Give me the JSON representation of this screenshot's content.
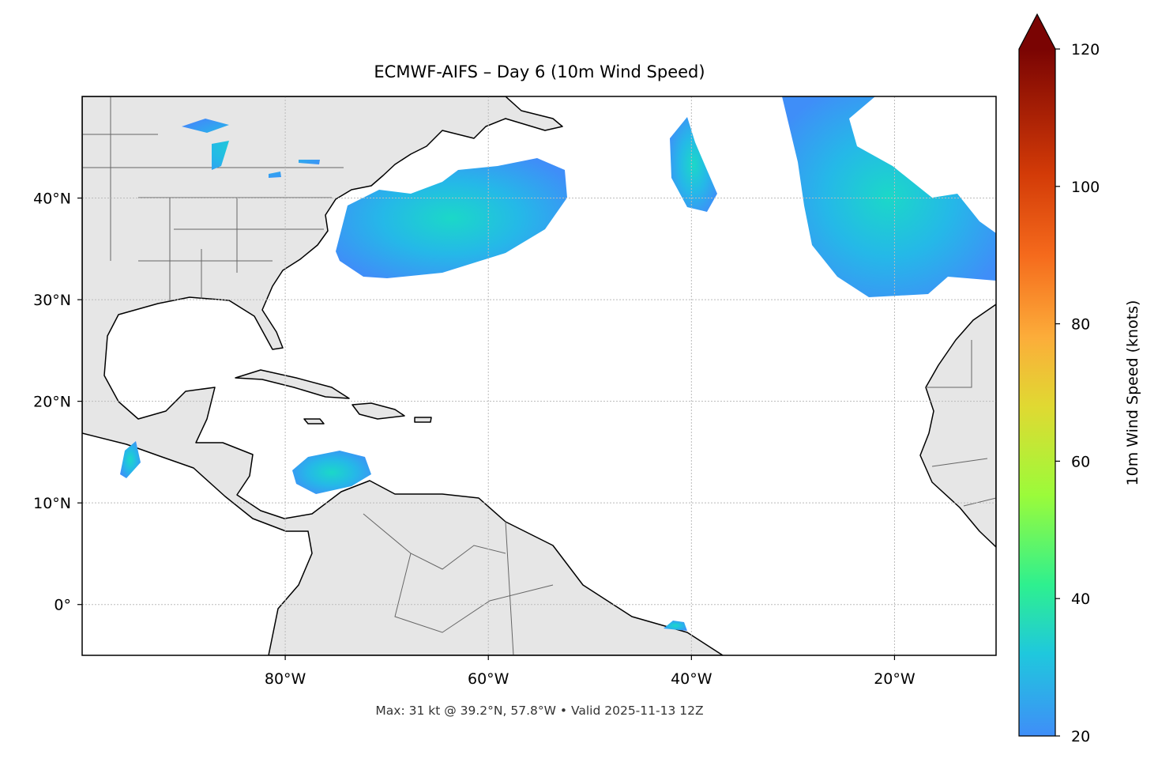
{
  "title": "ECMWF-AIFS – Day 6 (10m Wind Speed)",
  "footnote": "Max: 31 kt @ 39.2°N, 57.8°W • Valid 2025-11-13 12Z",
  "map": {
    "xlim": [
      -100,
      -10
    ],
    "ylim": [
      -5,
      50
    ],
    "grid": true,
    "xticks": [
      {
        "value": -80,
        "label": "80°W"
      },
      {
        "value": -60,
        "label": "60°W"
      },
      {
        "value": -40,
        "label": "40°W"
      },
      {
        "value": -20,
        "label": "20°W"
      }
    ],
    "yticks": [
      {
        "value": 0,
        "label": "0°"
      },
      {
        "value": 10,
        "label": "10°N"
      },
      {
        "value": 20,
        "label": "20°N"
      },
      {
        "value": 30,
        "label": "30°N"
      },
      {
        "value": 40,
        "label": "40°N"
      }
    ]
  },
  "colorbar": {
    "label": "10m Wind Speed (knots)",
    "lim": [
      20,
      120
    ],
    "ticks": [
      20,
      40,
      60,
      80,
      100,
      120
    ]
  }
}
